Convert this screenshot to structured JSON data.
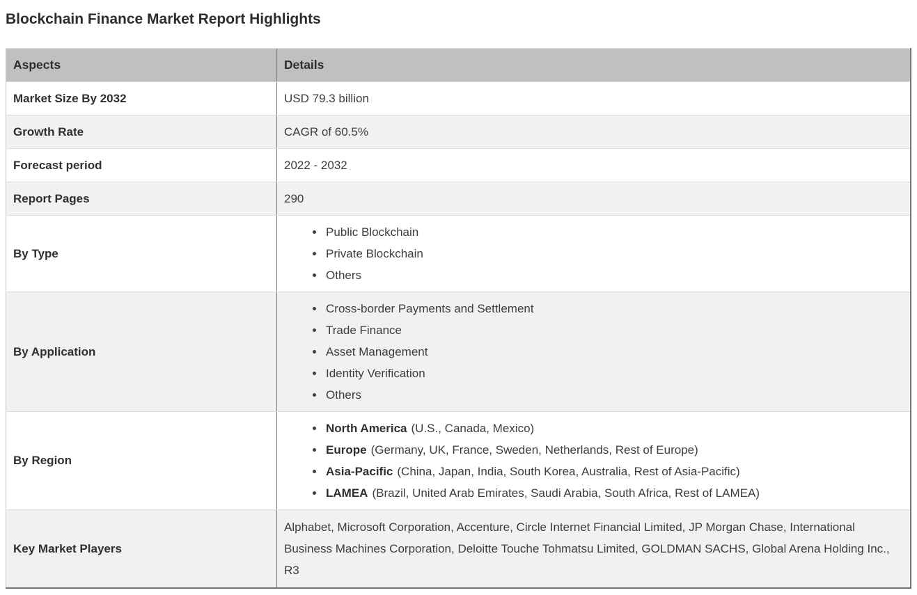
{
  "page": {
    "title": "Blockchain Finance Market Report Highlights"
  },
  "colors": {
    "header_bg": "#c0c0c0",
    "alt_row_bg": "#f1f1f0",
    "row_bg": "#ffffff",
    "text": "#3b3b3b",
    "divider_dark": "#7a7a7a",
    "divider_light": "#dcdcdc"
  },
  "table": {
    "headers": {
      "aspects": "Aspects",
      "details": "Details"
    },
    "rows": [
      {
        "aspect": "Market Size By 2032",
        "detail": "USD 79.3 billion"
      },
      {
        "aspect": "Growth Rate",
        "detail": "CAGR of 60.5%"
      },
      {
        "aspect": "Forecast period",
        "detail": "2022 - 2032"
      },
      {
        "aspect": "Report Pages",
        "detail": "290"
      },
      {
        "aspect": "By Type",
        "items": [
          "Public Blockchain",
          "Private Blockchain",
          "Others"
        ]
      },
      {
        "aspect": "By Application",
        "items": [
          "Cross-border Payments and Settlement",
          "Trade Finance",
          "Asset Management",
          "Identity Verification",
          "Others"
        ]
      },
      {
        "aspect": "By Region",
        "regions": [
          {
            "name": "North America",
            "countries": "(U.S., Canada, Mexico)"
          },
          {
            "name": "Europe",
            "countries": "(Germany, UK, France, Sweden, Netherlands, Rest of Europe)"
          },
          {
            "name": "Asia-Pacific",
            "countries": "(China, Japan, India, South Korea, Australia, Rest of Asia-Pacific)"
          },
          {
            "name": "LAMEA",
            "countries": "(Brazil, United Arab Emirates, Saudi Arabia, South Africa, Rest of LAMEA)"
          }
        ]
      },
      {
        "aspect": "Key Market Players",
        "detail": "Alphabet, Microsoft Corporation, Accenture, Circle Internet Financial Limited, JP Morgan Chase, International Business Machines Corporation, Deloitte Touche Tohmatsu Limited, GOLDMAN SACHS, Global Arena Holding Inc., R3"
      }
    ]
  }
}
